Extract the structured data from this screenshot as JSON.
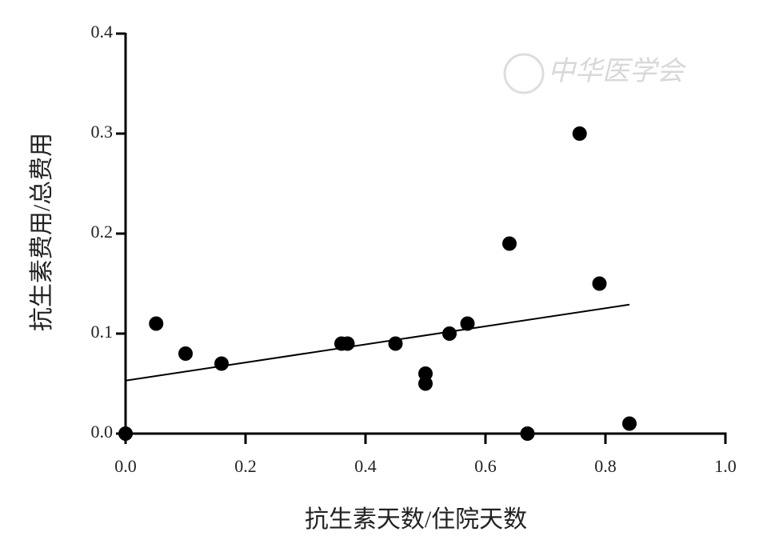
{
  "chart_data": {
    "type": "scatter",
    "xlabel": "抗生素天数/住院天数",
    "ylabel": "抗生素费用/总费用",
    "watermark": "中华医学会",
    "x": [
      0,
      0.051,
      0.1,
      0.16,
      0.36,
      0.37,
      0.45,
      0.5,
      0.5,
      0.54,
      0.57,
      0.64,
      0.67,
      0.757,
      0.79,
      0.84
    ],
    "values": [
      0,
      0.11,
      0.08,
      0.07,
      0.09,
      0.09,
      0.09,
      0.06,
      0.05,
      0.1,
      0.11,
      0.19,
      0,
      0.3,
      0.15,
      0.01
    ],
    "color": "#000000",
    "trendline": {
      "x": [
        0,
        0.84
      ],
      "values": [
        0.053,
        0.129
      ],
      "color": "#000000"
    },
    "xlim": [
      0,
      1
    ],
    "ylim": [
      0,
      0.4
    ],
    "xticks": [
      {
        "value": 0,
        "label": "0.0"
      },
      0.2,
      0.4,
      0.6,
      0.8,
      {
        "value": 1,
        "label": "1.0"
      }
    ],
    "yticks": [
      {
        "value": 0,
        "label": "0.0"
      },
      0.1,
      0.2,
      0.3,
      0.4
    ],
    "grid": false
  }
}
